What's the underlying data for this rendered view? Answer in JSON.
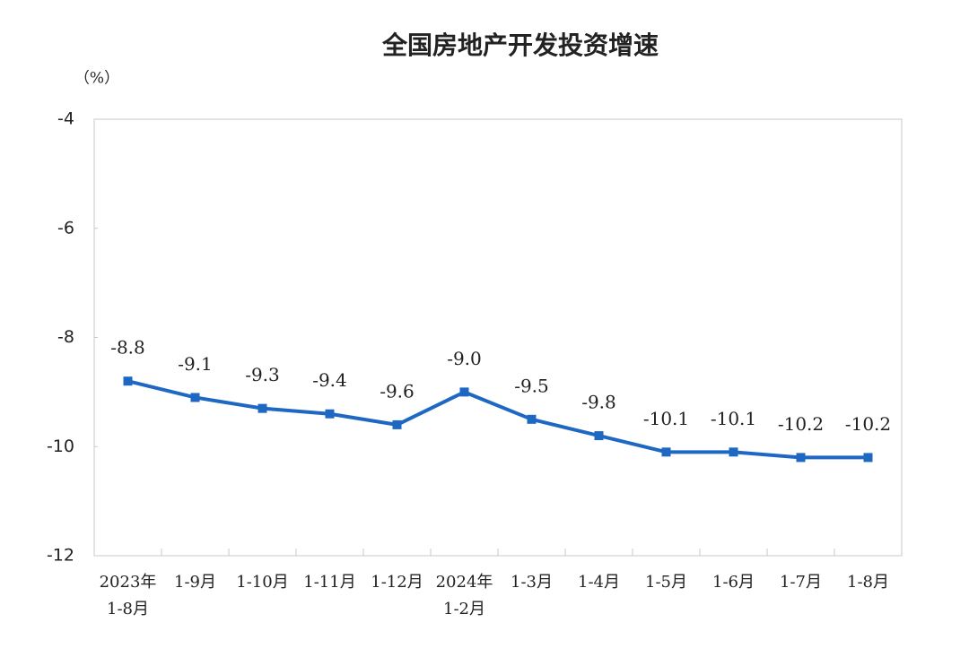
{
  "chart_data": {
    "type": "line",
    "title": "全国房地产开发投资增速",
    "unit_label": "（%）",
    "categories": [
      "2023年\n1-8月",
      "1-9月",
      "1-10月",
      "1-11月",
      "1-12月",
      "2024年\n1-2月",
      "1-3月",
      "1-4月",
      "1-5月",
      "1-6月",
      "1-7月",
      "1-8月"
    ],
    "values": [
      -8.8,
      -9.1,
      -9.3,
      -9.4,
      -9.6,
      -9.0,
      -9.5,
      -9.8,
      -10.1,
      -10.1,
      -10.2,
      -10.2
    ],
    "value_labels": [
      "-8.8",
      "-9.1",
      "-9.3",
      "-9.4",
      "-9.6",
      "-9.0",
      "-9.5",
      "-9.8",
      "-10.1",
      "-10.1",
      "-10.2",
      "-10.2"
    ],
    "color": "#1e68c4",
    "ylim": [
      -12,
      -4
    ],
    "yticks": [
      -4,
      -6,
      -8,
      -10,
      -12
    ],
    "grid": false
  }
}
